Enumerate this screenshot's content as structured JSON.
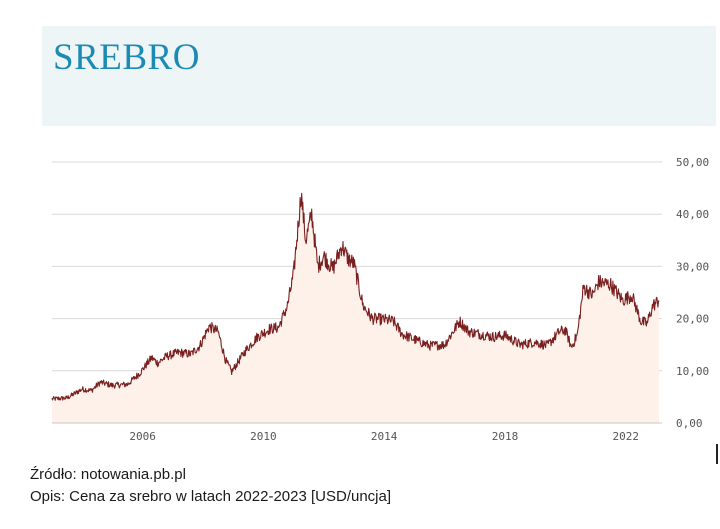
{
  "title": "SREBRO",
  "caption": {
    "source": "Źródło: notowania.pb.pl",
    "description": "Opis: Cena za srebro w latach 2022-2023 [USD/uncja]"
  },
  "colors": {
    "title": "#1b8ab5",
    "line": "#7a1f1f",
    "area": "#fdf1ea",
    "header_bg": "#eef5f7",
    "grid": "#d9d9d9",
    "tick_text": "#555555"
  },
  "chart_data": {
    "type": "line",
    "title": "",
    "xlabel": "",
    "ylabel": "",
    "xlim": [
      2003.0,
      2023.2
    ],
    "ylim": [
      0,
      50
    ],
    "grid": true,
    "filled_area": true,
    "y_ticks": [
      "0,00",
      "10,00",
      "20,00",
      "30,00",
      "40,00",
      "50,00"
    ],
    "y_tick_values": [
      0,
      10,
      20,
      30,
      40,
      50
    ],
    "x_ticks": [
      "2006",
      "2010",
      "2014",
      "2018",
      "2022"
    ],
    "x_tick_values": [
      2006,
      2010,
      2014,
      2018,
      2022
    ],
    "series": [
      {
        "x": [
          2003.0,
          2003.5,
          2004.0,
          2004.3,
          2004.6,
          2005.0,
          2005.5,
          2005.9,
          2006.3,
          2006.5,
          2006.8,
          2007.2,
          2007.6,
          2007.9,
          2008.2,
          2008.5,
          2008.75,
          2008.95,
          2009.4,
          2009.8,
          2010.2,
          2010.5,
          2010.8,
          2011.0,
          2011.25,
          2011.4,
          2011.6,
          2011.8,
          2012.0,
          2012.3,
          2012.6,
          2012.8,
          2013.0,
          2013.3,
          2013.6,
          2014.0,
          2014.3,
          2014.6,
          2015.0,
          2015.5,
          2016.0,
          2016.5,
          2016.8,
          2017.2,
          2017.6,
          2018.0,
          2018.5,
          2019.0,
          2019.4,
          2019.8,
          2020.0,
          2020.2,
          2020.4,
          2020.6,
          2020.9,
          2021.1,
          2021.5,
          2021.9,
          2022.2,
          2022.5,
          2022.7,
          2022.9,
          2023.1
        ],
        "y": [
          4.6,
          4.8,
          6.5,
          6.2,
          7.8,
          7.2,
          7.4,
          9.5,
          12.5,
          11.5,
          12.8,
          13.5,
          13.2,
          14.8,
          18.5,
          17.5,
          12.0,
          9.8,
          13.8,
          16.5,
          18.0,
          18.3,
          22.5,
          28.5,
          44.0,
          35.0,
          40.0,
          30.0,
          32.0,
          29.5,
          34.0,
          31.5,
          30.5,
          22.5,
          20.0,
          19.8,
          19.5,
          17.0,
          16.0,
          14.8,
          15.0,
          19.5,
          17.5,
          17.0,
          16.5,
          16.8,
          15.0,
          15.5,
          14.8,
          17.5,
          17.8,
          14.5,
          17.0,
          26.0,
          24.5,
          27.0,
          26.5,
          23.5,
          24.5,
          19.5,
          19.0,
          22.5,
          23.5
        ]
      }
    ]
  }
}
